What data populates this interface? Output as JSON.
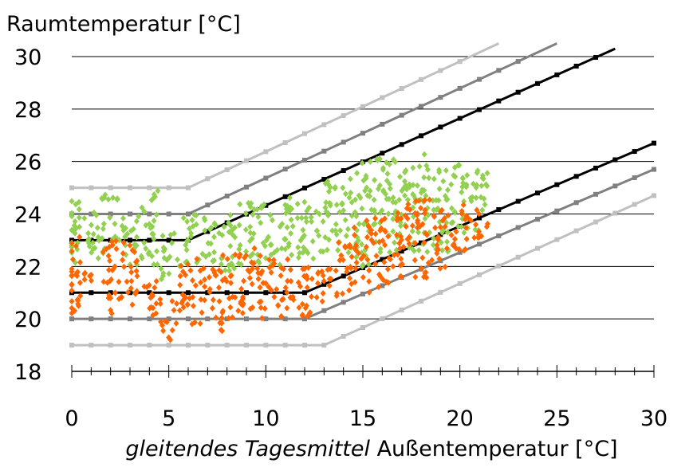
{
  "chart_data": {
    "type": "scatter",
    "title": "",
    "ylabel": "Raumtemperatur [°C]",
    "xlabel_italic": "gleitendes Tagesmittel",
    "xlabel_rest": "Außentemperatur [°C]",
    "xlim": [
      0,
      30
    ],
    "ylim": [
      18,
      30
    ],
    "x_ticks": [
      0,
      5,
      10,
      15,
      20,
      25,
      30
    ],
    "y_ticks": [
      18,
      20,
      22,
      24,
      26,
      28,
      30
    ],
    "grid": true,
    "legend": "none",
    "colors": {
      "line_black": "#000000",
      "line_dark_grey": "#808080",
      "line_light_grey": "#c0c0c0",
      "green": "#92d050",
      "orange": "#ff6600"
    },
    "band_lines": [
      {
        "color": "line_light_grey",
        "points": [
          [
            0,
            25
          ],
          [
            6,
            25
          ],
          [
            22,
            30.5
          ]
        ]
      },
      {
        "color": "line_dark_grey",
        "points": [
          [
            0,
            24
          ],
          [
            6,
            24
          ],
          [
            25,
            30.5
          ]
        ]
      },
      {
        "color": "line_black",
        "points": [
          [
            0,
            23
          ],
          [
            6,
            23
          ],
          [
            28,
            30.3
          ]
        ]
      },
      {
        "color": "line_black",
        "points": [
          [
            0,
            21
          ],
          [
            12,
            21
          ],
          [
            30,
            26.7
          ]
        ]
      },
      {
        "color": "line_dark_grey",
        "points": [
          [
            0,
            20
          ],
          [
            12,
            20
          ],
          [
            30,
            25.7
          ]
        ]
      },
      {
        "color": "line_light_grey",
        "points": [
          [
            0,
            19
          ],
          [
            13,
            19
          ],
          [
            30,
            24.7
          ]
        ]
      }
    ],
    "series": [
      {
        "color": "green",
        "clusters": [
          {
            "x": 0,
            "y_min": 22.0,
            "y_max": 24.7
          },
          {
            "x": 1,
            "y_min": 22.2,
            "y_max": 24.2
          },
          {
            "x": 2,
            "y_min": 22.5,
            "y_max": 24.8
          },
          {
            "x": 3,
            "y_min": 22.0,
            "y_max": 24.0
          },
          {
            "x": 4,
            "y_min": 22.0,
            "y_max": 24.9
          },
          {
            "x": 5,
            "y_min": 21.5,
            "y_max": 23.3
          },
          {
            "x": 6,
            "y_min": 22.0,
            "y_max": 24.0
          },
          {
            "x": 7,
            "y_min": 22.0,
            "y_max": 24.0
          },
          {
            "x": 8,
            "y_min": 21.8,
            "y_max": 24.2
          },
          {
            "x": 9,
            "y_min": 22.0,
            "y_max": 24.5
          },
          {
            "x": 10,
            "y_min": 22.0,
            "y_max": 24.6
          },
          {
            "x": 11,
            "y_min": 22.0,
            "y_max": 24.7
          },
          {
            "x": 12,
            "y_min": 22.2,
            "y_max": 24.8
          },
          {
            "x": 13,
            "y_min": 22.5,
            "y_max": 25.3
          },
          {
            "x": 14,
            "y_min": 22.5,
            "y_max": 25.5
          },
          {
            "x": 15,
            "y_min": 22.0,
            "y_max": 26.0
          },
          {
            "x": 16,
            "y_min": 22.5,
            "y_max": 26.2
          },
          {
            "x": 17,
            "y_min": 22.5,
            "y_max": 26.3
          },
          {
            "x": 18,
            "y_min": 22.5,
            "y_max": 26.4
          },
          {
            "x": 19,
            "y_min": 22.5,
            "y_max": 25.8
          },
          {
            "x": 20,
            "y_min": 23.0,
            "y_max": 25.9
          },
          {
            "x": 21,
            "y_min": 23.3,
            "y_max": 25.8
          }
        ]
      },
      {
        "color": "orange",
        "clusters": [
          {
            "x": 0,
            "y_min": 20.1,
            "y_max": 23.2
          },
          {
            "x": 1,
            "y_min": 21.3,
            "y_max": 21.8
          },
          {
            "x": 2,
            "y_min": 20.2,
            "y_max": 23.0
          },
          {
            "x": 3,
            "y_min": 20.5,
            "y_max": 23.0
          },
          {
            "x": 4,
            "y_min": 20.0,
            "y_max": 21.5
          },
          {
            "x": 5,
            "y_min": 19.2,
            "y_max": 20.8
          },
          {
            "x": 6,
            "y_min": 19.8,
            "y_max": 22.3
          },
          {
            "x": 7,
            "y_min": 19.8,
            "y_max": 22.0
          },
          {
            "x": 8,
            "y_min": 19.5,
            "y_max": 22.5
          },
          {
            "x": 9,
            "y_min": 20.0,
            "y_max": 22.8
          },
          {
            "x": 10,
            "y_min": 20.0,
            "y_max": 22.5
          },
          {
            "x": 11,
            "y_min": 20.0,
            "y_max": 22.3
          },
          {
            "x": 12,
            "y_min": 19.7,
            "y_max": 22.0
          },
          {
            "x": 13,
            "y_min": 20.5,
            "y_max": 22.0
          },
          {
            "x": 14,
            "y_min": 20.8,
            "y_max": 23.0
          },
          {
            "x": 15,
            "y_min": 21.0,
            "y_max": 23.8
          },
          {
            "x": 16,
            "y_min": 21.2,
            "y_max": 24.0
          },
          {
            "x": 17,
            "y_min": 21.5,
            "y_max": 24.5
          },
          {
            "x": 18,
            "y_min": 21.5,
            "y_max": 24.8
          },
          {
            "x": 19,
            "y_min": 21.8,
            "y_max": 24.2
          },
          {
            "x": 20,
            "y_min": 22.5,
            "y_max": 24.5
          },
          {
            "x": 21,
            "y_min": 23.0,
            "y_max": 24.3
          }
        ]
      }
    ]
  }
}
